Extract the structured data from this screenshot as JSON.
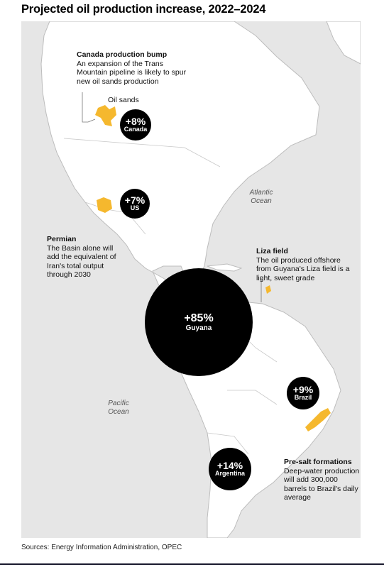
{
  "title": "Projected oil production increase, 2022–2024",
  "source": "Sources: Energy Information Administration, OPEC",
  "oceans": {
    "atlantic": "Atlantic\nOcean",
    "pacific": "Pacific\nOcean"
  },
  "bubbles": [
    {
      "pct": "+8%",
      "country": "Canada"
    },
    {
      "pct": "+7%",
      "country": "US"
    },
    {
      "pct": "+85%",
      "country": "Guyana"
    },
    {
      "pct": "+9%",
      "country": "Brazil"
    },
    {
      "pct": "+14%",
      "country": "Argentina"
    }
  ],
  "annotations": {
    "canada": {
      "head": "Canada production bump",
      "body": "An expansion of the Trans Mountain pipeline is likely to spur new oil sands production"
    },
    "oil_sands": "Oil sands",
    "permian": {
      "head": "Permian",
      "body": "The Basin alone will add the equivalent of Iran's total output through 2030"
    },
    "liza": {
      "head": "Liza field",
      "body": "The oil produced offshore from Guyana's Liza field is a light, sweet grade"
    },
    "presalt": {
      "head": "Pre-salt formations",
      "body": "Deep-water production will add 300,000 barrels to Brazil's daily average"
    }
  },
  "colors": {
    "land": "#ffffff",
    "water": "#e6e6e6",
    "field": "#f5b82e",
    "bubble": "#000000"
  }
}
